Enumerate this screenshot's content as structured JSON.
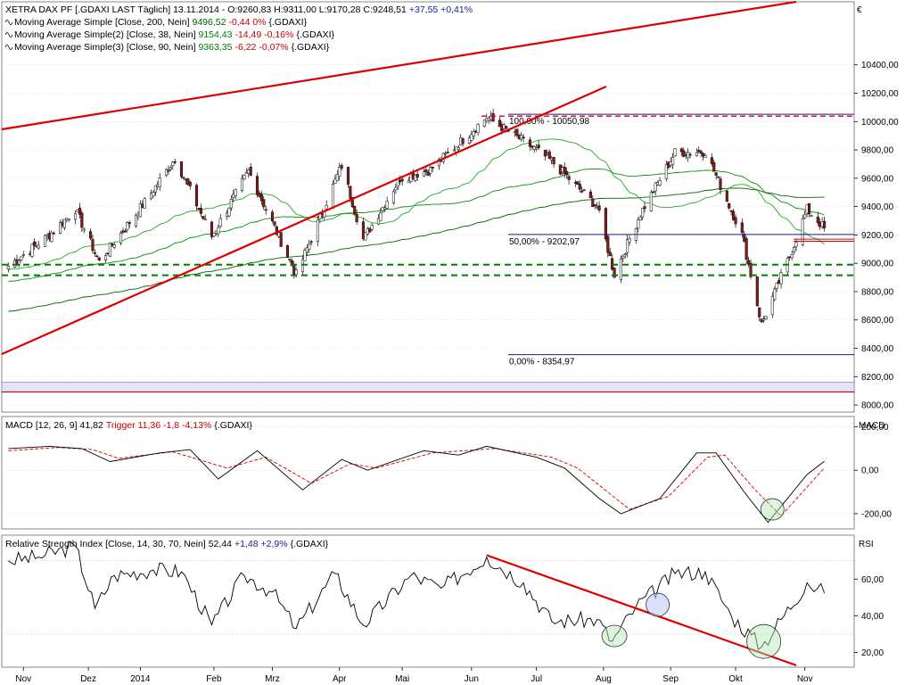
{
  "chart_data": [
    {
      "type": "candlestick",
      "header": {
        "prefix": "XETRA DAX PF [.GDAXI LAST Täglich] 13.11.2014 - ",
        "ohlc": "O:9260,83 H:9311,00 L:9170,28 C:9248,51",
        "change": "+37,55 +0,41%"
      },
      "legend": [
        {
          "name": "Moving Average Simple [Close, 200, Nein]",
          "value": "9496,52",
          "change": "-0,44 0%",
          "tag": "{.GDAXI}",
          "color": "#006400",
          "change_color": "#cc0000"
        },
        {
          "name": "Moving Average Simple(2) [Close, 38, Nein]",
          "value": "9154,43",
          "change": "-14,49 -0,16%",
          "tag": "{.GDAXI}",
          "color": "#008000",
          "change_color": "#cc0000"
        },
        {
          "name": "Moving Average Simple(3) [Close, 90, Nein]",
          "value": "9363,35",
          "change": "-6,22 -0,07%",
          "tag": "{.GDAXI}",
          "color": "#008000",
          "change_color": "#cc0000"
        }
      ],
      "currency": "€",
      "ylim": [
        7950,
        10820
      ],
      "yticks": [
        "8000,00",
        "8200,00",
        "8400,00",
        "8600,00",
        "8800,00",
        "9000,00",
        "9200,00",
        "9400,00",
        "9600,00",
        "9800,00",
        "10000,00",
        "10200,00",
        "10400,00"
      ],
      "ytick_values": [
        8000,
        8200,
        8400,
        8600,
        8800,
        9000,
        9200,
        9400,
        9600,
        9800,
        10000,
        10200,
        10400
      ],
      "fib_levels": [
        {
          "label": "100,00% - 10050,98",
          "value": 10050.98
        },
        {
          "label": "50,00% - 9202,97",
          "value": 9202.97
        },
        {
          "label": "0,00% - 8354,97",
          "value": 8354.97
        }
      ],
      "support_lines": [
        8990,
        8915
      ],
      "key_points": [
        {
          "date": "2013-11-01",
          "close": 8980
        },
        {
          "date": "2013-11-20",
          "close": 9200
        },
        {
          "date": "2013-12-02",
          "close": 9380
        },
        {
          "date": "2013-12-13",
          "close": 9010
        },
        {
          "date": "2014-01-03",
          "close": 9430
        },
        {
          "date": "2014-01-17",
          "close": 9740
        },
        {
          "date": "2014-02-03",
          "close": 9190
        },
        {
          "date": "2014-02-20",
          "close": 9650
        },
        {
          "date": "2014-03-14",
          "close": 8920
        },
        {
          "date": "2014-04-04",
          "close": 9690
        },
        {
          "date": "2014-04-14",
          "close": 9170
        },
        {
          "date": "2014-05-01",
          "close": 9600
        },
        {
          "date": "2014-05-15",
          "close": 9660
        },
        {
          "date": "2014-06-10",
          "close": 10030
        },
        {
          "date": "2014-06-30",
          "close": 9830
        },
        {
          "date": "2014-07-10",
          "close": 9720
        },
        {
          "date": "2014-07-31",
          "close": 9400
        },
        {
          "date": "2014-08-08",
          "close": 8920
        },
        {
          "date": "2014-08-20",
          "close": 9350
        },
        {
          "date": "2014-09-05",
          "close": 9780
        },
        {
          "date": "2014-09-19",
          "close": 9790
        },
        {
          "date": "2014-10-06",
          "close": 9200
        },
        {
          "date": "2014-10-15",
          "close": 8570
        },
        {
          "date": "2014-10-28",
          "close": 9050
        },
        {
          "date": "2014-11-05",
          "close": 9380
        },
        {
          "date": "2014-11-13",
          "close": 9248
        }
      ]
    },
    {
      "type": "line",
      "header": {
        "label": "MACD [12, 26, 9]",
        "value": "41,82",
        "trigger": "Trigger 11,36 -1,8 -4,13%",
        "tag": "{.GDAXI}"
      },
      "axis_title": "MACD",
      "ylim": [
        -270,
        235
      ],
      "yticks": [
        "-200,00",
        "0,00",
        "200,00"
      ],
      "ytick_values": [
        -200,
        0,
        200
      ],
      "series": [
        {
          "name": "MACD",
          "color": "#000000",
          "points": [
            {
              "date": "2013-11-01",
              "value": 100
            },
            {
              "date": "2013-11-20",
              "value": 110
            },
            {
              "date": "2013-12-05",
              "value": 100
            },
            {
              "date": "2013-12-18",
              "value": 40
            },
            {
              "date": "2014-01-10",
              "value": 80
            },
            {
              "date": "2014-01-24",
              "value": 95
            },
            {
              "date": "2014-02-06",
              "value": -40
            },
            {
              "date": "2014-02-24",
              "value": 90
            },
            {
              "date": "2014-03-17",
              "value": -90
            },
            {
              "date": "2014-04-04",
              "value": 50
            },
            {
              "date": "2014-04-16",
              "value": 0
            },
            {
              "date": "2014-05-12",
              "value": 90
            },
            {
              "date": "2014-05-28",
              "value": 70
            },
            {
              "date": "2014-06-10",
              "value": 110
            },
            {
              "date": "2014-07-03",
              "value": 60
            },
            {
              "date": "2014-07-16",
              "value": 10
            },
            {
              "date": "2014-08-01",
              "value": -130
            },
            {
              "date": "2014-08-11",
              "value": -200
            },
            {
              "date": "2014-08-29",
              "value": -130
            },
            {
              "date": "2014-09-15",
              "value": 80
            },
            {
              "date": "2014-09-24",
              "value": 80
            },
            {
              "date": "2014-10-07",
              "value": -100
            },
            {
              "date": "2014-10-18",
              "value": -240
            },
            {
              "date": "2014-11-05",
              "value": -20
            },
            {
              "date": "2014-11-13",
              "value": 41.82
            }
          ]
        },
        {
          "name": "Trigger",
          "color": "#cc0000",
          "points": [
            {
              "date": "2013-11-01",
              "value": 90
            },
            {
              "date": "2013-11-24",
              "value": 105
            },
            {
              "date": "2013-12-10",
              "value": 95
            },
            {
              "date": "2013-12-22",
              "value": 55
            },
            {
              "date": "2014-01-16",
              "value": 85
            },
            {
              "date": "2014-02-10",
              "value": 10
            },
            {
              "date": "2014-02-28",
              "value": 60
            },
            {
              "date": "2014-03-21",
              "value": -60
            },
            {
              "date": "2014-04-08",
              "value": 30
            },
            {
              "date": "2014-04-20",
              "value": 10
            },
            {
              "date": "2014-05-16",
              "value": 80
            },
            {
              "date": "2014-06-14",
              "value": 100
            },
            {
              "date": "2014-07-10",
              "value": 60
            },
            {
              "date": "2014-07-22",
              "value": 10
            },
            {
              "date": "2014-08-15",
              "value": -180
            },
            {
              "date": "2014-09-02",
              "value": -120
            },
            {
              "date": "2014-09-20",
              "value": 60
            },
            {
              "date": "2014-09-28",
              "value": 70
            },
            {
              "date": "2014-10-12",
              "value": -90
            },
            {
              "date": "2014-10-24",
              "value": -210
            },
            {
              "date": "2014-11-13",
              "value": 11.36
            }
          ]
        }
      ],
      "circles": [
        {
          "date": "2014-10-20",
          "value": -180
        }
      ]
    },
    {
      "type": "line",
      "header": {
        "label": "Relative Strength Index [Close, 14, 30, 70, Nein]",
        "value": "52,44",
        "change": "+1,48 +2,9%",
        "tag": "{.GDAXI}"
      },
      "axis_title": "RSI",
      "ylim": [
        12,
        82
      ],
      "yticks": [
        "20,00",
        "40,00",
        "60,00"
      ],
      "ytick_values": [
        20,
        40,
        60
      ],
      "reference_levels": [
        30,
        70
      ],
      "series": [
        {
          "name": "RSI",
          "color": "#000000",
          "points": [
            {
              "date": "2013-11-01",
              "value": 70
            },
            {
              "date": "2013-11-15",
              "value": 72
            },
            {
              "date": "2013-12-02",
              "value": 78
            },
            {
              "date": "2013-12-11",
              "value": 44
            },
            {
              "date": "2013-12-20",
              "value": 62
            },
            {
              "date": "2014-01-07",
              "value": 65
            },
            {
              "date": "2014-01-20",
              "value": 64
            },
            {
              "date": "2014-02-03",
              "value": 35
            },
            {
              "date": "2014-02-18",
              "value": 62
            },
            {
              "date": "2014-03-03",
              "value": 53
            },
            {
              "date": "2014-03-14",
              "value": 33
            },
            {
              "date": "2014-04-01",
              "value": 63
            },
            {
              "date": "2014-04-14",
              "value": 35
            },
            {
              "date": "2014-05-06",
              "value": 62
            },
            {
              "date": "2014-05-20",
              "value": 55
            },
            {
              "date": "2014-06-10",
              "value": 72
            },
            {
              "date": "2014-06-27",
              "value": 58
            },
            {
              "date": "2014-07-10",
              "value": 37
            },
            {
              "date": "2014-07-31",
              "value": 38
            },
            {
              "date": "2014-08-07",
              "value": 26
            },
            {
              "date": "2014-08-18",
              "value": 45
            },
            {
              "date": "2014-09-05",
              "value": 63
            },
            {
              "date": "2014-09-19",
              "value": 64
            },
            {
              "date": "2014-10-01",
              "value": 40
            },
            {
              "date": "2014-10-15",
              "value": 23
            },
            {
              "date": "2014-11-05",
              "value": 58
            },
            {
              "date": "2014-11-13",
              "value": 52.44
            }
          ]
        }
      ],
      "trendline": [
        {
          "date": "2014-06-10",
          "value": 73
        },
        {
          "date": "2014-10-31",
          "value": 13
        }
      ],
      "circles": [
        {
          "date": "2014-08-08",
          "value": 29
        },
        {
          "date": "2014-08-28",
          "value": 46
        },
        {
          "date": "2014-10-16",
          "value": 26
        }
      ]
    }
  ],
  "x_axis": {
    "ticks": [
      {
        "label": "Nov",
        "date": "2013-11-08"
      },
      {
        "label": "Dez",
        "date": "2013-12-08"
      },
      {
        "label": "2014",
        "date": "2014-01-01"
      },
      {
        "label": "Feb",
        "date": "2014-02-04"
      },
      {
        "label": "Mrz",
        "date": "2014-03-03"
      },
      {
        "label": "Apr",
        "date": "2014-04-03"
      },
      {
        "label": "Mai",
        "date": "2014-05-02"
      },
      {
        "label": "Jun",
        "date": "2014-06-03"
      },
      {
        "label": "Jul",
        "date": "2014-07-03"
      },
      {
        "label": "Aug",
        "date": "2014-08-03"
      },
      {
        "label": "Sep",
        "date": "2014-09-03"
      },
      {
        "label": "Okt",
        "date": "2014-10-03"
      },
      {
        "label": "Nov",
        "date": "2014-11-04"
      }
    ]
  },
  "colors": {
    "up": "#ffffff",
    "down": "#8b1a1a",
    "trend": "#dd0000",
    "fib": "#1a1a8c",
    "support": "#008000",
    "band": "#e4e4f7"
  }
}
